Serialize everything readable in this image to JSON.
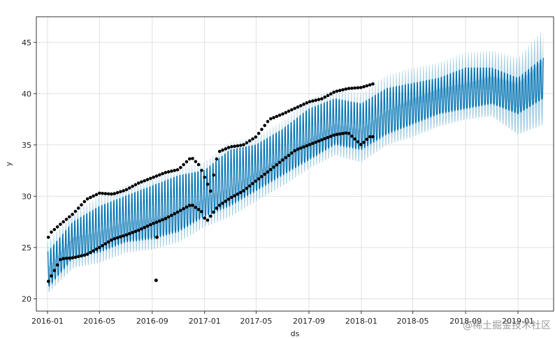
{
  "watermark": "@稀土掘金技术社区",
  "chart_data": {
    "type": "line",
    "title": "",
    "xlabel": "ds",
    "ylabel": "y",
    "xlim": [
      "2015-12-06",
      "2019-03-25"
    ],
    "ylim": [
      18.8,
      47.5
    ],
    "grid": true,
    "x_ticks": [
      "2016-01",
      "2016-05",
      "2016-09",
      "2017-01",
      "2017-05",
      "2017-09",
      "2018-01",
      "2018-05",
      "2018-09",
      "2019-01"
    ],
    "y_ticks": [
      20,
      25,
      30,
      35,
      40,
      45
    ],
    "colors": {
      "forecast_line": "#0072B2",
      "uncertainty_band": "#9ecae1",
      "observed_points": "#000000",
      "grid": "#e0e0e0"
    },
    "series": [
      {
        "kind": "forecast",
        "x": [
          "2016-01-01",
          "2016-03-01",
          "2016-05-01",
          "2016-07-01",
          "2016-09-01",
          "2016-11-01",
          "2017-01-01",
          "2017-03-01",
          "2017-05-01",
          "2017-07-01",
          "2017-09-01",
          "2017-11-01",
          "2018-01-01",
          "2018-03-01",
          "2018-05-01",
          "2018-07-01",
          "2018-09-01",
          "2018-11-01",
          "2019-01-01",
          "2019-03-01"
        ],
        "upper": [
          24.5,
          27.5,
          29.0,
          30.0,
          31.0,
          32.0,
          32.5,
          34.5,
          35.0,
          36.5,
          38.5,
          39.5,
          39.0,
          40.5,
          41.0,
          41.5,
          42.5,
          42.5,
          41.5,
          43.5
        ],
        "lower": [
          21.0,
          24.0,
          24.5,
          25.5,
          25.8,
          26.5,
          28.0,
          29.0,
          30.5,
          32.0,
          33.5,
          35.0,
          34.5,
          36.0,
          37.0,
          38.0,
          38.5,
          39.0,
          38.0,
          39.5
        ],
        "band_upper": [
          25.5,
          28.5,
          30.0,
          31.0,
          32.0,
          32.8,
          33.3,
          35.3,
          35.8,
          37.3,
          39.5,
          40.5,
          40.0,
          41.8,
          42.5,
          43.0,
          44.0,
          44.2,
          43.5,
          46.3
        ],
        "band_lower": [
          20.5,
          23.0,
          23.5,
          24.5,
          24.8,
          25.5,
          27.0,
          28.0,
          29.5,
          31.0,
          32.7,
          34.0,
          33.3,
          35.0,
          35.8,
          36.8,
          37.5,
          37.8,
          36.0,
          37.0
        ],
        "period_days": 7
      },
      {
        "kind": "observed",
        "upper_x": [
          "2016-01-03",
          "2016-01-10",
          "2016-02-01",
          "2016-03-01",
          "2016-04-01",
          "2016-05-01",
          "2016-06-01",
          "2016-07-01",
          "2016-08-01",
          "2016-09-01",
          "2016-10-01",
          "2016-11-01",
          "2016-12-01",
          "2016-12-20",
          "2017-01-15",
          "2017-02-01",
          "2017-03-01",
          "2017-04-01",
          "2017-05-01",
          "2017-06-01",
          "2017-07-01",
          "2017-08-01",
          "2017-09-01",
          "2017-10-01",
          "2017-11-01",
          "2017-12-01",
          "2018-01-01",
          "2018-02-01"
        ],
        "upper_y": [
          26.0,
          26.5,
          27.3,
          28.3,
          29.7,
          30.3,
          30.2,
          30.6,
          31.3,
          31.8,
          32.3,
          32.6,
          33.8,
          33.0,
          30.5,
          34.3,
          34.8,
          35.0,
          35.8,
          37.5,
          38.0,
          38.6,
          39.2,
          39.5,
          40.2,
          40.5,
          40.6,
          41.0
        ],
        "lower_x": [
          "2016-01-03",
          "2016-02-01",
          "2016-03-01",
          "2016-04-01",
          "2016-05-01",
          "2016-06-01",
          "2016-07-01",
          "2016-08-01",
          "2016-09-01",
          "2016-10-01",
          "2016-11-01",
          "2016-12-01",
          "2016-12-25",
          "2017-01-05",
          "2017-02-01",
          "2017-03-01",
          "2017-04-01",
          "2017-05-01",
          "2017-06-01",
          "2017-07-01",
          "2017-08-01",
          "2017-09-01",
          "2017-10-01",
          "2017-11-01",
          "2017-12-01",
          "2018-01-01",
          "2018-01-20",
          "2018-02-01"
        ],
        "lower_y": [
          21.7,
          23.9,
          24.0,
          24.3,
          25.0,
          25.8,
          26.2,
          26.7,
          27.3,
          27.8,
          28.5,
          29.2,
          28.5,
          27.5,
          29.0,
          29.8,
          30.5,
          31.5,
          32.5,
          33.5,
          34.5,
          35.0,
          35.5,
          36.0,
          36.2,
          35.0,
          35.8,
          35.8
        ],
        "outliers_x": [
          "2016-09-10",
          "2016-09-12"
        ],
        "outliers_y": [
          21.8,
          26.0
        ]
      }
    ]
  }
}
